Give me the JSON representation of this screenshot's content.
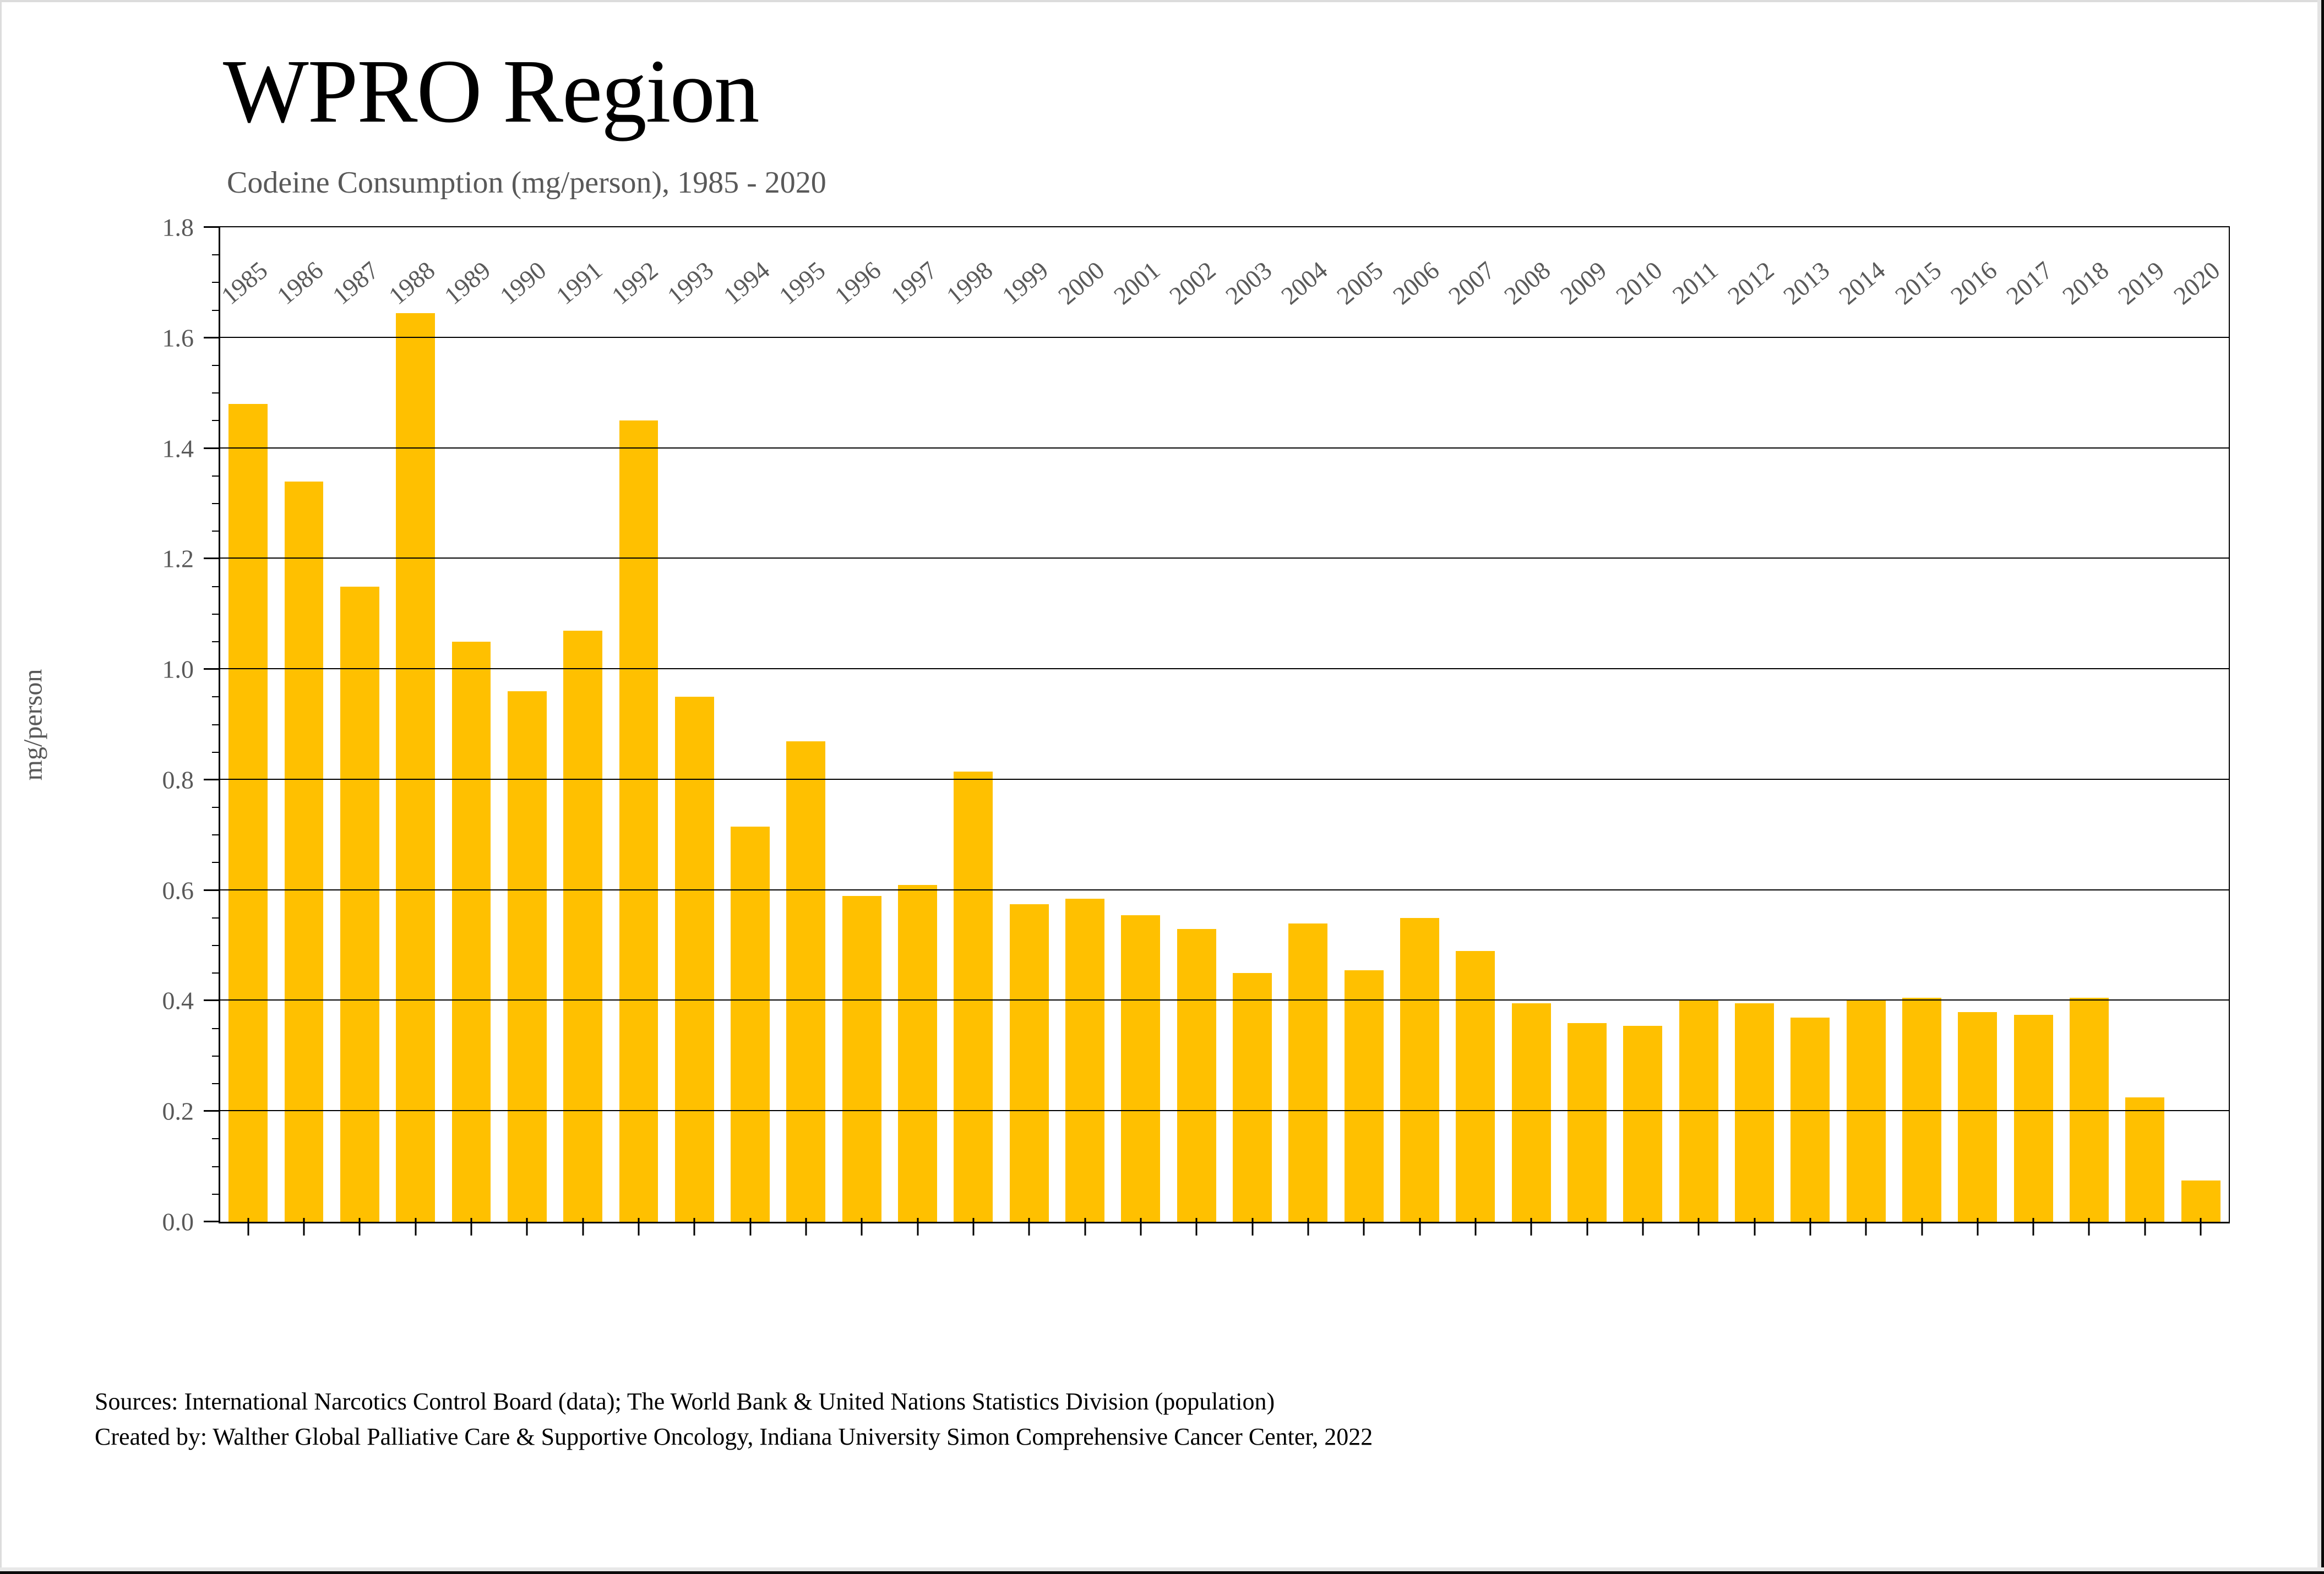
{
  "window": {
    "background": "#ffffff",
    "edge_gray": "#dcdcdc",
    "edge_black": "#0a0a0a"
  },
  "header": {
    "title": "WPRO Region",
    "subtitle": "Codeine Consumption (mg/person), 1985 - 2020"
  },
  "chart_data": {
    "type": "bar",
    "title": "WPRO Region",
    "subtitle": "Codeine Consumption (mg/person), 1985 - 2020",
    "xlabel": "",
    "ylabel": "mg/person",
    "ylim": [
      0,
      1.8
    ],
    "y_tick_step": 0.2,
    "y_minor_tick_step": 0.05,
    "y_tick_labels": [
      "0.0",
      "0.2",
      "0.4",
      "0.6",
      "0.8",
      "1.0",
      "1.2",
      "1.4",
      "1.6",
      "1.8"
    ],
    "grid": "horizontal-major",
    "legend": "none",
    "bar_color": "#FFC000",
    "axis_color": "#000000",
    "tick_label_color": "#595959",
    "categories": [
      "1985",
      "1986",
      "1987",
      "1988",
      "1989",
      "1990",
      "1991",
      "1992",
      "1993",
      "1994",
      "1995",
      "1996",
      "1997",
      "1998",
      "1999",
      "2000",
      "2001",
      "2002",
      "2003",
      "2004",
      "2005",
      "2006",
      "2007",
      "2008",
      "2009",
      "2010",
      "2011",
      "2012",
      "2013",
      "2014",
      "2015",
      "2016",
      "2017",
      "2018",
      "2019",
      "2020"
    ],
    "values": [
      1.48,
      1.34,
      1.15,
      1.645,
      1.05,
      0.96,
      1.07,
      1.45,
      0.95,
      0.715,
      0.87,
      0.59,
      0.61,
      0.815,
      0.575,
      0.585,
      0.555,
      0.53,
      0.45,
      0.54,
      0.455,
      0.55,
      0.49,
      0.395,
      0.36,
      0.355,
      0.4,
      0.395,
      0.37,
      0.4,
      0.405,
      0.38,
      0.375,
      0.405,
      0.225,
      0.075
    ]
  },
  "footer": {
    "line1": "Sources: International Narcotics Control Board (data); The World Bank & United Nations Statistics Division (population)",
    "line2": "Created by: Walther Global Palliative Care & Supportive Oncology, Indiana University Simon Comprehensive Cancer Center, 2022"
  }
}
